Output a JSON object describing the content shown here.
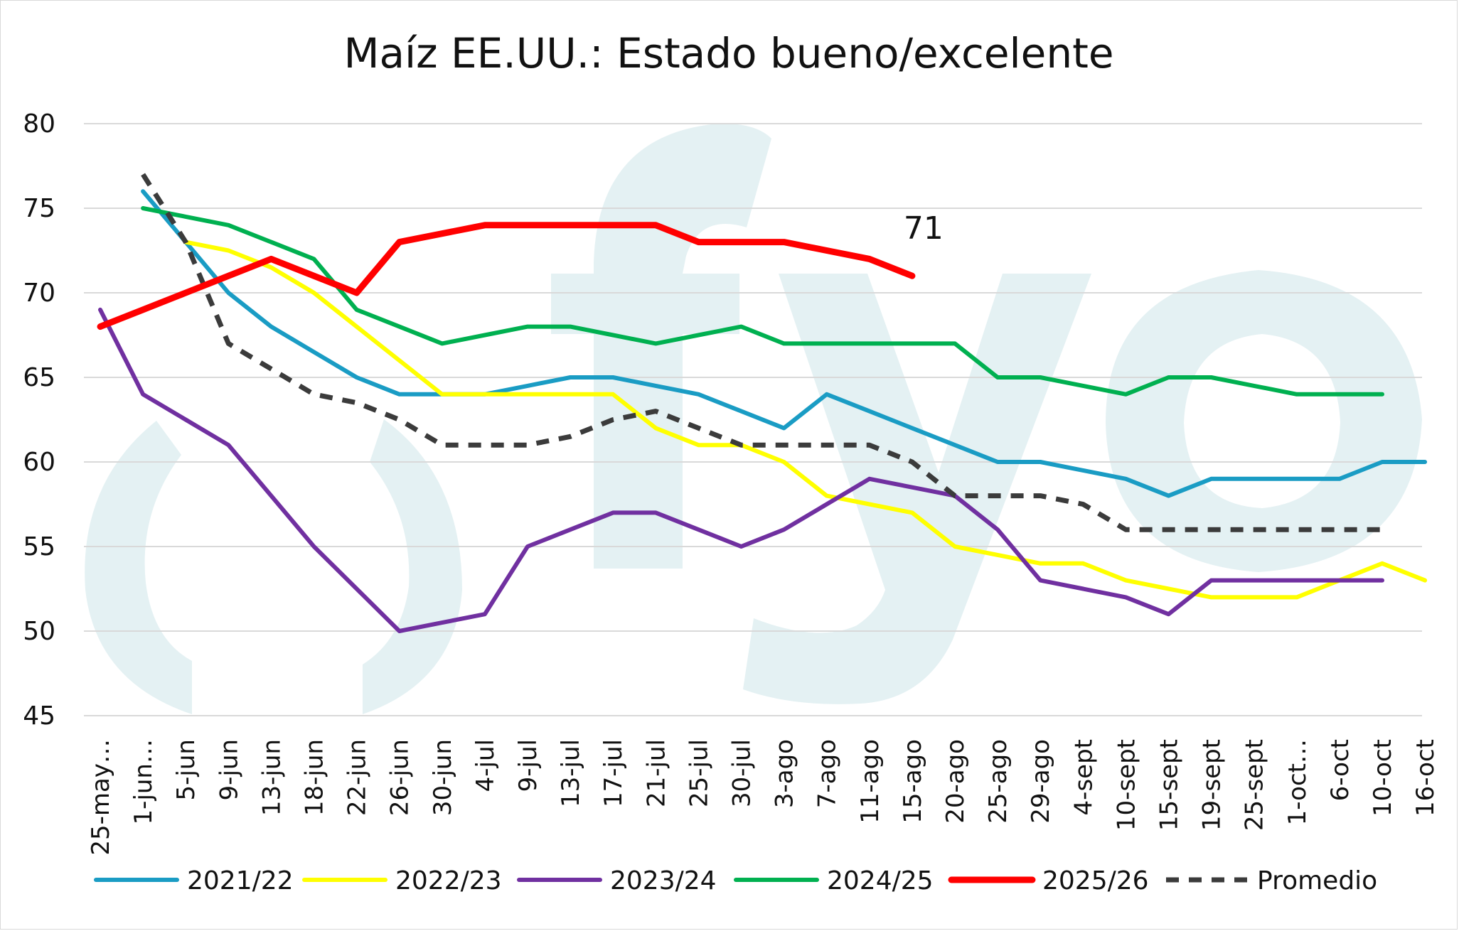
{
  "chart_data": {
    "type": "line",
    "title": "Maíz EE.UU.: Estado bueno/excelente",
    "xlabel": "",
    "ylabel": "",
    "ylim": [
      45,
      80
    ],
    "yticks": [
      45,
      50,
      55,
      60,
      65,
      70,
      75,
      80
    ],
    "grid": true,
    "legend_position": "bottom",
    "watermark": "fyo",
    "categories": [
      "25-may…",
      "1-jun…",
      "5-jun",
      "9-jun",
      "13-jun",
      "18-jun",
      "22-jun",
      "26-jun",
      "30-jun",
      "4-jul",
      "9-jul",
      "13-jul",
      "17-jul",
      "21-jul",
      "25-jul",
      "30-jul",
      "3-ago",
      "7-ago",
      "11-ago",
      "15-ago",
      "20-ago",
      "25-ago",
      "29-ago",
      "4-sept",
      "10-sept",
      "15-sept",
      "19-sept",
      "25-sept",
      "1-oct…",
      "6-oct",
      "10-oct",
      "16-oct"
    ],
    "series": [
      {
        "name": "2021/22",
        "color": "#1a9cc4",
        "dashed": false,
        "width": 6,
        "values": [
          null,
          76,
          73,
          70,
          68,
          66.5,
          65,
          64,
          64,
          64,
          64.5,
          65,
          65,
          64.5,
          64,
          63,
          62,
          64,
          63,
          62,
          61,
          60,
          60,
          59.5,
          59,
          58,
          59,
          59,
          59,
          59,
          60,
          60
        ]
      },
      {
        "name": "2022/23",
        "color": "#ffff00",
        "dashed": false,
        "width": 6,
        "values": [
          null,
          null,
          73,
          72.5,
          71.5,
          70,
          68,
          66,
          64,
          64,
          64,
          64,
          64,
          62,
          61,
          61,
          60,
          58,
          57.5,
          57,
          55,
          54.5,
          54,
          54,
          53,
          52.5,
          52,
          52,
          52,
          53,
          54,
          53
        ]
      },
      {
        "name": "2023/24",
        "color": "#7030a0",
        "dashed": false,
        "width": 6,
        "values": [
          69,
          64,
          62.5,
          61,
          58,
          55,
          52.5,
          50,
          50.5,
          51,
          55,
          56,
          57,
          57,
          56,
          55,
          56,
          57.5,
          59,
          58.5,
          58,
          56,
          53,
          52.5,
          52,
          51,
          53,
          53,
          53,
          53,
          53,
          null
        ]
      },
      {
        "name": "2024/25",
        "color": "#00b050",
        "dashed": false,
        "width": 6,
        "values": [
          null,
          75,
          74.5,
          74,
          73,
          72,
          69,
          68,
          67,
          67.5,
          68,
          68,
          67.5,
          67,
          67.5,
          68,
          67,
          67,
          67,
          67,
          67,
          65,
          65,
          64.5,
          64,
          65,
          65,
          64.5,
          64,
          64,
          64,
          null
        ]
      },
      {
        "name": "2025/26",
        "color": "#ff0000",
        "dashed": false,
        "width": 9,
        "values": [
          68,
          69,
          70,
          71,
          72,
          71,
          70,
          73,
          73.5,
          74,
          74,
          74,
          74,
          74,
          73,
          73,
          73,
          72.5,
          72,
          71,
          null,
          null,
          null,
          null,
          null,
          null,
          null,
          null,
          null,
          null,
          null,
          null
        ]
      },
      {
        "name": "Promedio",
        "color": "#3b3b3b",
        "dashed": true,
        "width": 7,
        "values": [
          null,
          77,
          73,
          67,
          65.5,
          64,
          63.5,
          62.5,
          61,
          61,
          61,
          61.5,
          62.5,
          63,
          62,
          61,
          61,
          61,
          61,
          60,
          58,
          58,
          58,
          57.5,
          56,
          56,
          56,
          56,
          56,
          56,
          56,
          null
        ]
      }
    ],
    "annotations": [
      {
        "series": "2025/26",
        "category": "15-ago",
        "text": "71"
      }
    ]
  }
}
